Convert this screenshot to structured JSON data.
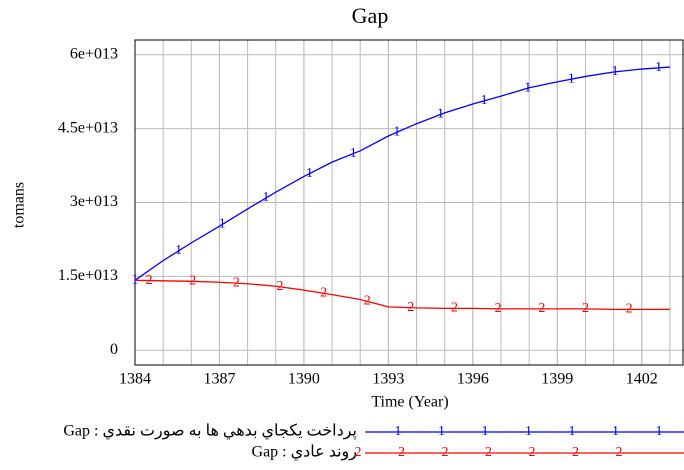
{
  "chart_data": {
    "type": "line",
    "title": "Gap",
    "x_label": "Time (Year)",
    "y_label": "tomans",
    "x": [
      1384,
      1385,
      1386,
      1387,
      1388,
      1389,
      1390,
      1391,
      1392,
      1393,
      1394,
      1395,
      1396,
      1397,
      1398,
      1399,
      1400,
      1401,
      1402,
      1403
    ],
    "series": [
      {
        "name": "Gap : پرداخت يكجاي بدهي ها به صورت نقدي",
        "marker_label": "1",
        "color": "#0000ff",
        "values": [
          14200000000000.0,
          18200000000000.0,
          21800000000000.0,
          25200000000000.0,
          28700000000000.0,
          32100000000000.0,
          35300000000000.0,
          38200000000000.0,
          40500000000000.0,
          43500000000000.0,
          46000000000000.0,
          48200000000000.0,
          50000000000000.0,
          51600000000000.0,
          53300000000000.0,
          54500000000000.0,
          55600000000000.0,
          56500000000000.0,
          57100000000000.0,
          57500000000000.0
        ]
      },
      {
        "name": "Gap : روند عادي",
        "marker_label": "2",
        "color": "#ff0000",
        "values": [
          14200000000000.0,
          14100000000000.0,
          14000000000000.0,
          13800000000000.0,
          13500000000000.0,
          13000000000000.0,
          12200000000000.0,
          11300000000000.0,
          10300000000000.0,
          8800000000000.0,
          8600000000000.0,
          8500000000000.0,
          8500000000000.0,
          8400000000000.0,
          8400000000000.0,
          8400000000000.0,
          8400000000000.0,
          8300000000000.0,
          8300000000000.0,
          8300000000000.0
        ]
      }
    ],
    "xlim": [
      1384,
      1403.5
    ],
    "xticks": [
      1384,
      1387,
      1390,
      1393,
      1396,
      1399,
      1402
    ],
    "x_minor_step": 1,
    "ylim": [
      -3000000000000.0,
      63000000000000.0
    ],
    "yticks": [
      0,
      {
        "value": 15000000000000.0,
        "label": "1.5e+013"
      },
      {
        "value": 30000000000000.0,
        "label": "3e+013"
      },
      {
        "value": 45000000000000.0,
        "label": "4.5e+013"
      },
      {
        "value": 60000000000000.0,
        "label": "6e+013"
      }
    ],
    "grid": true
  }
}
